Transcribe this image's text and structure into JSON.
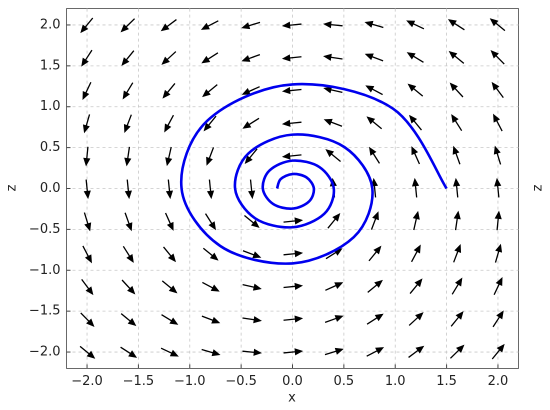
{
  "chart_data": {
    "type": "quiver",
    "xlabel": "x",
    "ylabel": "z",
    "ylabel_right": "z",
    "xlim": [
      -2.2,
      2.2
    ],
    "ylim": [
      -2.2,
      2.2
    ],
    "xticks": [
      {
        "value": -2,
        "label": "−2.0"
      },
      {
        "value": -1.5,
        "label": "−1.5"
      },
      {
        "value": -1,
        "label": "−1.0"
      },
      {
        "value": -0.5,
        "label": "−0.5"
      },
      {
        "value": 0,
        "label": "0.0"
      },
      {
        "value": 0.5,
        "label": "0.5"
      },
      {
        "value": 1,
        "label": "1.0"
      },
      {
        "value": 1.5,
        "label": "1.5"
      },
      {
        "value": 2,
        "label": "2.0"
      }
    ],
    "yticks": [
      {
        "value": -2,
        "label": "−2.0"
      },
      {
        "value": -1.5,
        "label": "−1.5"
      },
      {
        "value": -1,
        "label": "−1.0"
      },
      {
        "value": -0.5,
        "label": "−0.5"
      },
      {
        "value": 0,
        "label": "0.0"
      },
      {
        "value": 0.5,
        "label": "0.5"
      },
      {
        "value": 1,
        "label": "1.0"
      },
      {
        "value": 1.5,
        "label": "1.5"
      },
      {
        "value": 2,
        "label": "2.0"
      }
    ],
    "grid": true,
    "arrow_color": "#000000",
    "grid_x": [
      -2,
      -1.6,
      -1.2,
      -0.8,
      -0.4,
      0,
      0.4,
      0.8,
      1.2,
      1.6,
      2
    ],
    "grid_z": [
      -2,
      -1.6,
      -1.2,
      -0.8,
      -0.4,
      0,
      0.4,
      0.8,
      1.2,
      1.6,
      2
    ],
    "u": [
      [
        2.2,
        2.16,
        2.12,
        2.08,
        2.04,
        2,
        1.96,
        1.92,
        1.88,
        1.84,
        1.8
      ],
      [
        1.8,
        1.76,
        1.72,
        1.68,
        1.64,
        1.6,
        1.56,
        1.52,
        1.48,
        1.44,
        1.4
      ],
      [
        1.4,
        1.36,
        1.32,
        1.28,
        1.24,
        1.2,
        1.16,
        1.12,
        1.08,
        1.04,
        1
      ],
      [
        1,
        0.96,
        0.92,
        0.88,
        0.84,
        0.8,
        0.76,
        0.72,
        0.68,
        0.64,
        0.6
      ],
      [
        0.6,
        0.56,
        0.52,
        0.48,
        0.44,
        0.4,
        0.36,
        0.32,
        0.28,
        0.24,
        0.2
      ],
      [
        0.2,
        0.16,
        0.12,
        0.08,
        0.04,
        0,
        -0.04,
        -0.08,
        -0.12,
        -0.16,
        -0.2
      ],
      [
        -0.2,
        -0.24,
        -0.28,
        -0.32,
        -0.36,
        -0.4,
        -0.44,
        -0.48,
        -0.52,
        -0.56,
        -0.6
      ],
      [
        -0.6,
        -0.64,
        -0.68,
        -0.72,
        -0.76,
        -0.8,
        -0.84,
        -0.88,
        -0.92,
        -0.96,
        -1
      ],
      [
        -1,
        -1.04,
        -1.08,
        -1.12,
        -1.16,
        -1.2,
        -1.24,
        -1.28,
        -1.32,
        -1.36,
        -1.4
      ],
      [
        -1.4,
        -1.44,
        -1.48,
        -1.52,
        -1.56,
        -1.6,
        -1.64,
        -1.68,
        -1.72,
        -1.76,
        -1.8
      ],
      [
        -1.8,
        -1.84,
        -1.88,
        -1.92,
        -1.96,
        -2,
        -2.04,
        -2.08,
        -2.12,
        -2.16,
        -2.2
      ]
    ],
    "v": [
      [
        -1.8,
        -1.4,
        -1,
        -0.6,
        -0.2,
        0.2,
        0.6,
        1,
        1.4,
        1.8,
        2.2
      ],
      [
        -1.84,
        -1.44,
        -1.04,
        -0.64,
        -0.24,
        0.16,
        0.56,
        0.96,
        1.36,
        1.76,
        2.16
      ],
      [
        -1.88,
        -1.48,
        -1.08,
        -0.68,
        -0.28,
        0.12,
        0.52,
        0.92,
        1.32,
        1.72,
        2.12
      ],
      [
        -1.92,
        -1.52,
        -1.12,
        -0.72,
        -0.32,
        0.08,
        0.48,
        0.88,
        1.28,
        1.68,
        2.08
      ],
      [
        -1.96,
        -1.56,
        -1.16,
        -0.76,
        -0.36,
        0.04,
        0.44,
        0.84,
        1.24,
        1.64,
        2.04
      ],
      [
        -2,
        -1.6,
        -1.2,
        -0.8,
        -0.4,
        0,
        0.4,
        0.8,
        1.2,
        1.6,
        2
      ],
      [
        -2.04,
        -1.64,
        -1.24,
        -0.84,
        -0.44,
        -0.04,
        0.36,
        0.76,
        1.16,
        1.56,
        1.96
      ],
      [
        -2.08,
        -1.68,
        -1.28,
        -0.88,
        -0.48,
        -0.08,
        0.32,
        0.72,
        1.12,
        1.52,
        1.92
      ],
      [
        -2.12,
        -1.72,
        -1.32,
        -0.92,
        -0.52,
        -0.12,
        0.28,
        0.68,
        1.08,
        1.48,
        1.88
      ],
      [
        -2.16,
        -1.76,
        -1.36,
        -0.96,
        -0.56,
        -0.16,
        0.24,
        0.64,
        1.04,
        1.44,
        1.84
      ],
      [
        -2.2,
        -1.8,
        -1.4,
        -1,
        -0.6,
        -0.2,
        0.2,
        0.6,
        1,
        1.4,
        1.8
      ]
    ],
    "trajectory": {
      "color": "#0000ee",
      "x": [
        1.5,
        0.977,
        0,
        -0.829,
        -1.08,
        -0.703,
        0,
        0.596,
        0.777,
        0.506,
        0,
        -0.429,
        -0.559,
        -0.364,
        0,
        0.309,
        0.402,
        0.262,
        0,
        -0.222,
        -0.289,
        -0.189,
        0,
        0.16,
        0.208,
        0.136,
        0,
        -0.115,
        -0.15
      ],
      "z": [
        0,
        0.977,
        1.273,
        0.829,
        0,
        -0.703,
        -0.916,
        -0.596,
        0,
        0.506,
        0.659,
        0.429,
        0,
        -0.364,
        -0.474,
        -0.309,
        0,
        0.262,
        0.341,
        0.222,
        0,
        -0.189,
        -0.246,
        -0.16,
        0,
        0.136,
        0.177,
        0.115,
        0
      ]
    }
  }
}
